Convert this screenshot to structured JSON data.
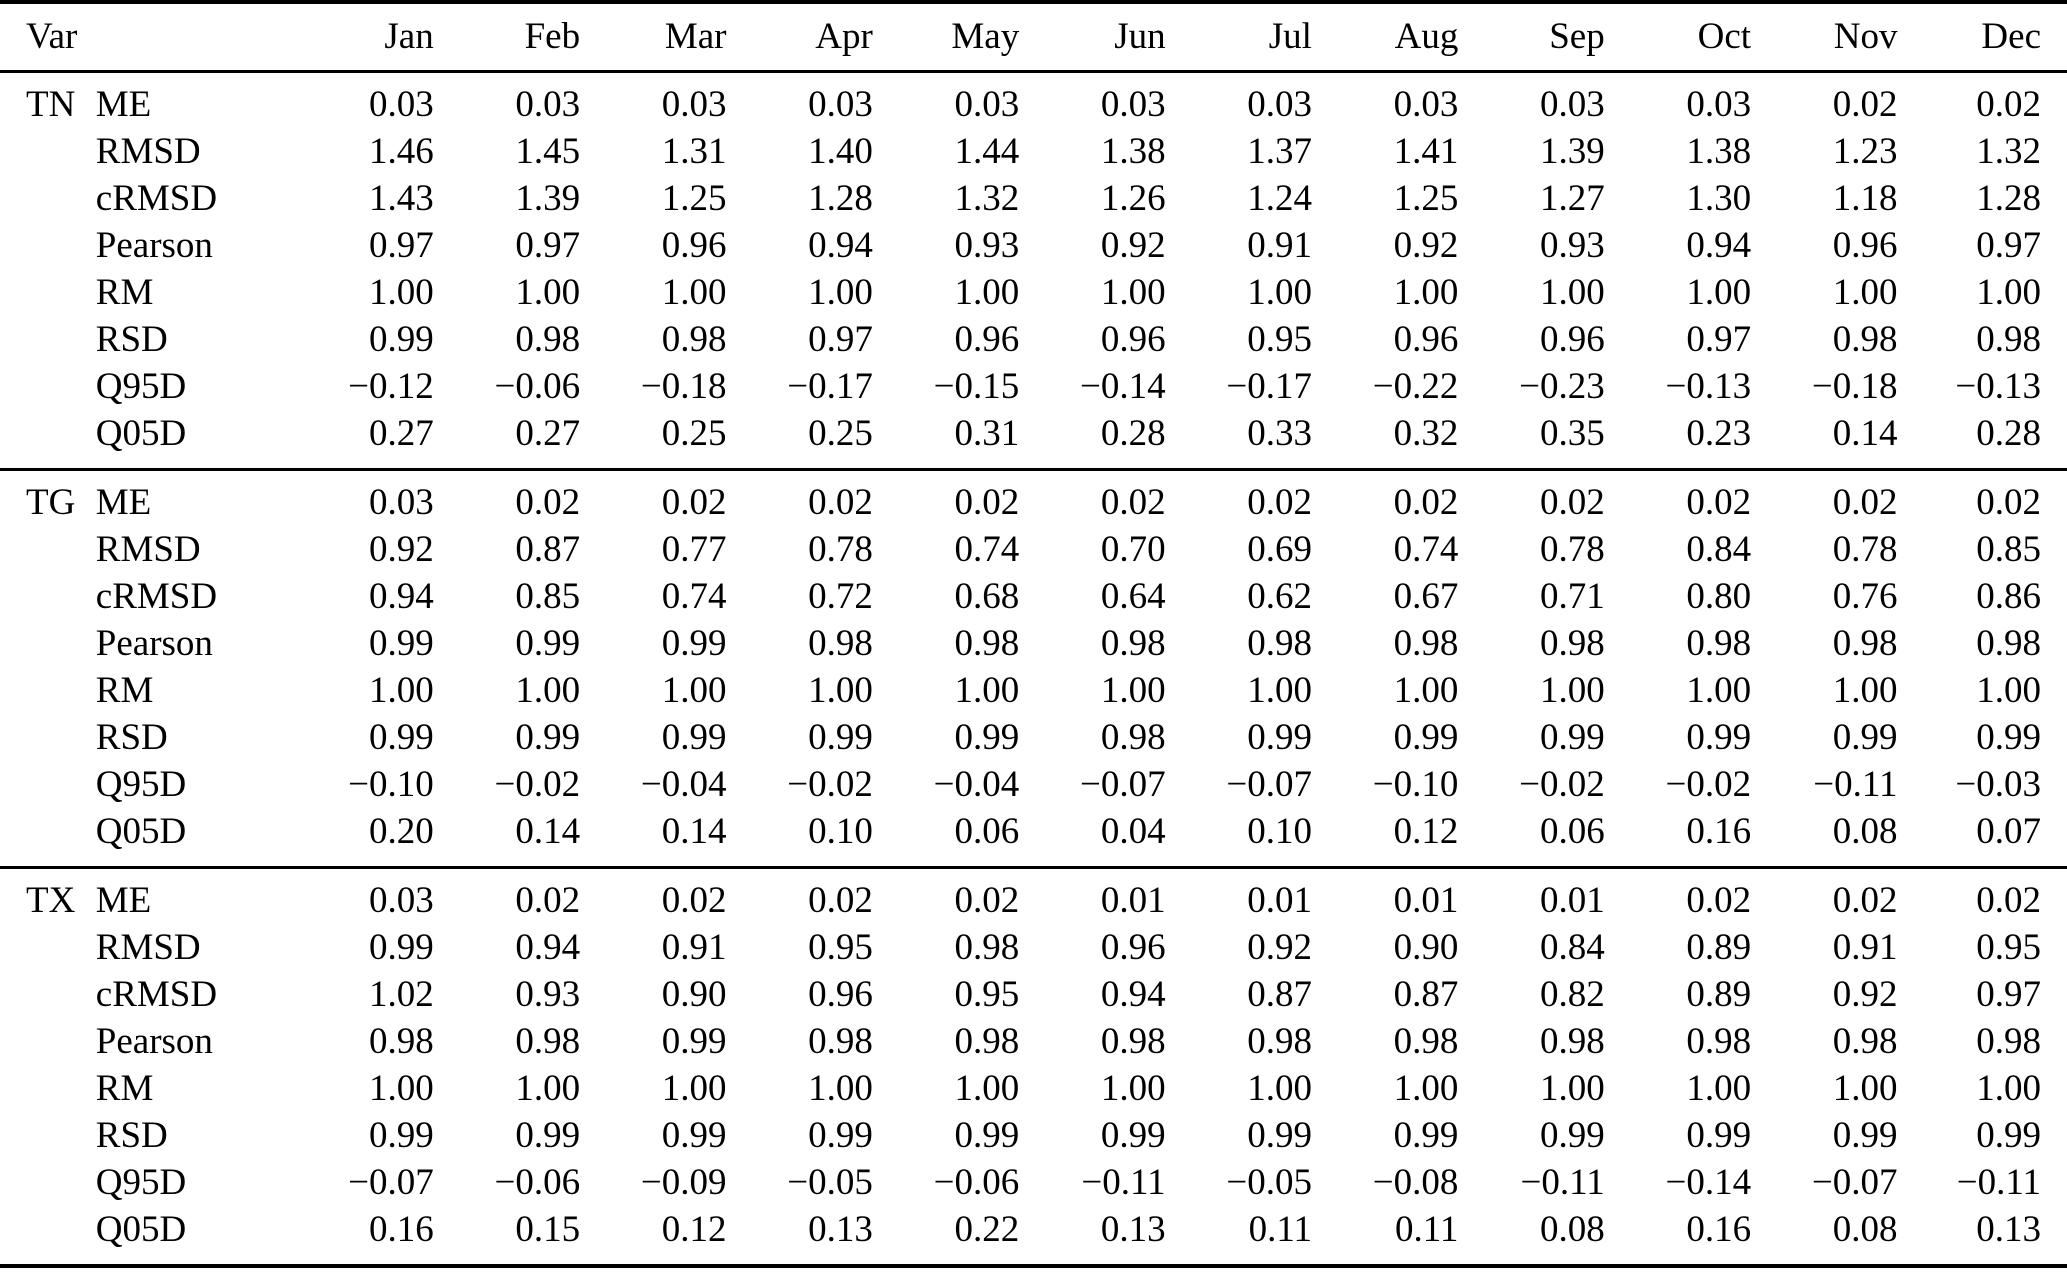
{
  "page": {
    "background_color": "#ffffff",
    "text_color": "#000000"
  },
  "table": {
    "header": {
      "var_label": "Var",
      "metric_label": "",
      "months": [
        "Jan",
        "Feb",
        "Mar",
        "Apr",
        "May",
        "Jun",
        "Jul",
        "Aug",
        "Sep",
        "Oct",
        "Nov",
        "Dec"
      ]
    },
    "groups": [
      {
        "var": "TN",
        "rows": [
          {
            "metric": "ME",
            "values": [
              "0.03",
              "0.03",
              "0.03",
              "0.03",
              "0.03",
              "0.03",
              "0.03",
              "0.03",
              "0.03",
              "0.03",
              "0.02",
              "0.02"
            ]
          },
          {
            "metric": "RMSD",
            "values": [
              "1.46",
              "1.45",
              "1.31",
              "1.40",
              "1.44",
              "1.38",
              "1.37",
              "1.41",
              "1.39",
              "1.38",
              "1.23",
              "1.32"
            ]
          },
          {
            "metric": "cRMSD",
            "values": [
              "1.43",
              "1.39",
              "1.25",
              "1.28",
              "1.32",
              "1.26",
              "1.24",
              "1.25",
              "1.27",
              "1.30",
              "1.18",
              "1.28"
            ]
          },
          {
            "metric": "Pearson",
            "values": [
              "0.97",
              "0.97",
              "0.96",
              "0.94",
              "0.93",
              "0.92",
              "0.91",
              "0.92",
              "0.93",
              "0.94",
              "0.96",
              "0.97"
            ]
          },
          {
            "metric": "RM",
            "values": [
              "1.00",
              "1.00",
              "1.00",
              "1.00",
              "1.00",
              "1.00",
              "1.00",
              "1.00",
              "1.00",
              "1.00",
              "1.00",
              "1.00"
            ]
          },
          {
            "metric": "RSD",
            "values": [
              "0.99",
              "0.98",
              "0.98",
              "0.97",
              "0.96",
              "0.96",
              "0.95",
              "0.96",
              "0.96",
              "0.97",
              "0.98",
              "0.98"
            ]
          },
          {
            "metric": "Q95D",
            "values": [
              "−0.12",
              "−0.06",
              "−0.18",
              "−0.17",
              "−0.15",
              "−0.14",
              "−0.17",
              "−0.22",
              "−0.23",
              "−0.13",
              "−0.18",
              "−0.13"
            ]
          },
          {
            "metric": "Q05D",
            "values": [
              "0.27",
              "0.27",
              "0.25",
              "0.25",
              "0.31",
              "0.28",
              "0.33",
              "0.32",
              "0.35",
              "0.23",
              "0.14",
              "0.28"
            ]
          }
        ]
      },
      {
        "var": "TG",
        "rows": [
          {
            "metric": "ME",
            "values": [
              "0.03",
              "0.02",
              "0.02",
              "0.02",
              "0.02",
              "0.02",
              "0.02",
              "0.02",
              "0.02",
              "0.02",
              "0.02",
              "0.02"
            ]
          },
          {
            "metric": "RMSD",
            "values": [
              "0.92",
              "0.87",
              "0.77",
              "0.78",
              "0.74",
              "0.70",
              "0.69",
              "0.74",
              "0.78",
              "0.84",
              "0.78",
              "0.85"
            ]
          },
          {
            "metric": "cRMSD",
            "values": [
              "0.94",
              "0.85",
              "0.74",
              "0.72",
              "0.68",
              "0.64",
              "0.62",
              "0.67",
              "0.71",
              "0.80",
              "0.76",
              "0.86"
            ]
          },
          {
            "metric": "Pearson",
            "values": [
              "0.99",
              "0.99",
              "0.99",
              "0.98",
              "0.98",
              "0.98",
              "0.98",
              "0.98",
              "0.98",
              "0.98",
              "0.98",
              "0.98"
            ]
          },
          {
            "metric": "RM",
            "values": [
              "1.00",
              "1.00",
              "1.00",
              "1.00",
              "1.00",
              "1.00",
              "1.00",
              "1.00",
              "1.00",
              "1.00",
              "1.00",
              "1.00"
            ]
          },
          {
            "metric": "RSD",
            "values": [
              "0.99",
              "0.99",
              "0.99",
              "0.99",
              "0.99",
              "0.98",
              "0.99",
              "0.99",
              "0.99",
              "0.99",
              "0.99",
              "0.99"
            ]
          },
          {
            "metric": "Q95D",
            "values": [
              "−0.10",
              "−0.02",
              "−0.04",
              "−0.02",
              "−0.04",
              "−0.07",
              "−0.07",
              "−0.10",
              "−0.02",
              "−0.02",
              "−0.11",
              "−0.03"
            ]
          },
          {
            "metric": "Q05D",
            "values": [
              "0.20",
              "0.14",
              "0.14",
              "0.10",
              "0.06",
              "0.04",
              "0.10",
              "0.12",
              "0.06",
              "0.16",
              "0.08",
              "0.07"
            ]
          }
        ]
      },
      {
        "var": "TX",
        "rows": [
          {
            "metric": "ME",
            "values": [
              "0.03",
              "0.02",
              "0.02",
              "0.02",
              "0.02",
              "0.01",
              "0.01",
              "0.01",
              "0.01",
              "0.02",
              "0.02",
              "0.02"
            ]
          },
          {
            "metric": "RMSD",
            "values": [
              "0.99",
              "0.94",
              "0.91",
              "0.95",
              "0.98",
              "0.96",
              "0.92",
              "0.90",
              "0.84",
              "0.89",
              "0.91",
              "0.95"
            ]
          },
          {
            "metric": "cRMSD",
            "values": [
              "1.02",
              "0.93",
              "0.90",
              "0.96",
              "0.95",
              "0.94",
              "0.87",
              "0.87",
              "0.82",
              "0.89",
              "0.92",
              "0.97"
            ]
          },
          {
            "metric": "Pearson",
            "values": [
              "0.98",
              "0.98",
              "0.99",
              "0.98",
              "0.98",
              "0.98",
              "0.98",
              "0.98",
              "0.98",
              "0.98",
              "0.98",
              "0.98"
            ]
          },
          {
            "metric": "RM",
            "values": [
              "1.00",
              "1.00",
              "1.00",
              "1.00",
              "1.00",
              "1.00",
              "1.00",
              "1.00",
              "1.00",
              "1.00",
              "1.00",
              "1.00"
            ]
          },
          {
            "metric": "RSD",
            "values": [
              "0.99",
              "0.99",
              "0.99",
              "0.99",
              "0.99",
              "0.99",
              "0.99",
              "0.99",
              "0.99",
              "0.99",
              "0.99",
              "0.99"
            ]
          },
          {
            "metric": "Q95D",
            "values": [
              "−0.07",
              "−0.06",
              "−0.09",
              "−0.05",
              "−0.06",
              "−0.11",
              "−0.05",
              "−0.08",
              "−0.11",
              "−0.14",
              "−0.07",
              "−0.11"
            ]
          },
          {
            "metric": "Q05D",
            "values": [
              "0.16",
              "0.15",
              "0.12",
              "0.13",
              "0.22",
              "0.13",
              "0.11",
              "0.11",
              "0.08",
              "0.16",
              "0.08",
              "0.13"
            ]
          }
        ]
      }
    ]
  }
}
